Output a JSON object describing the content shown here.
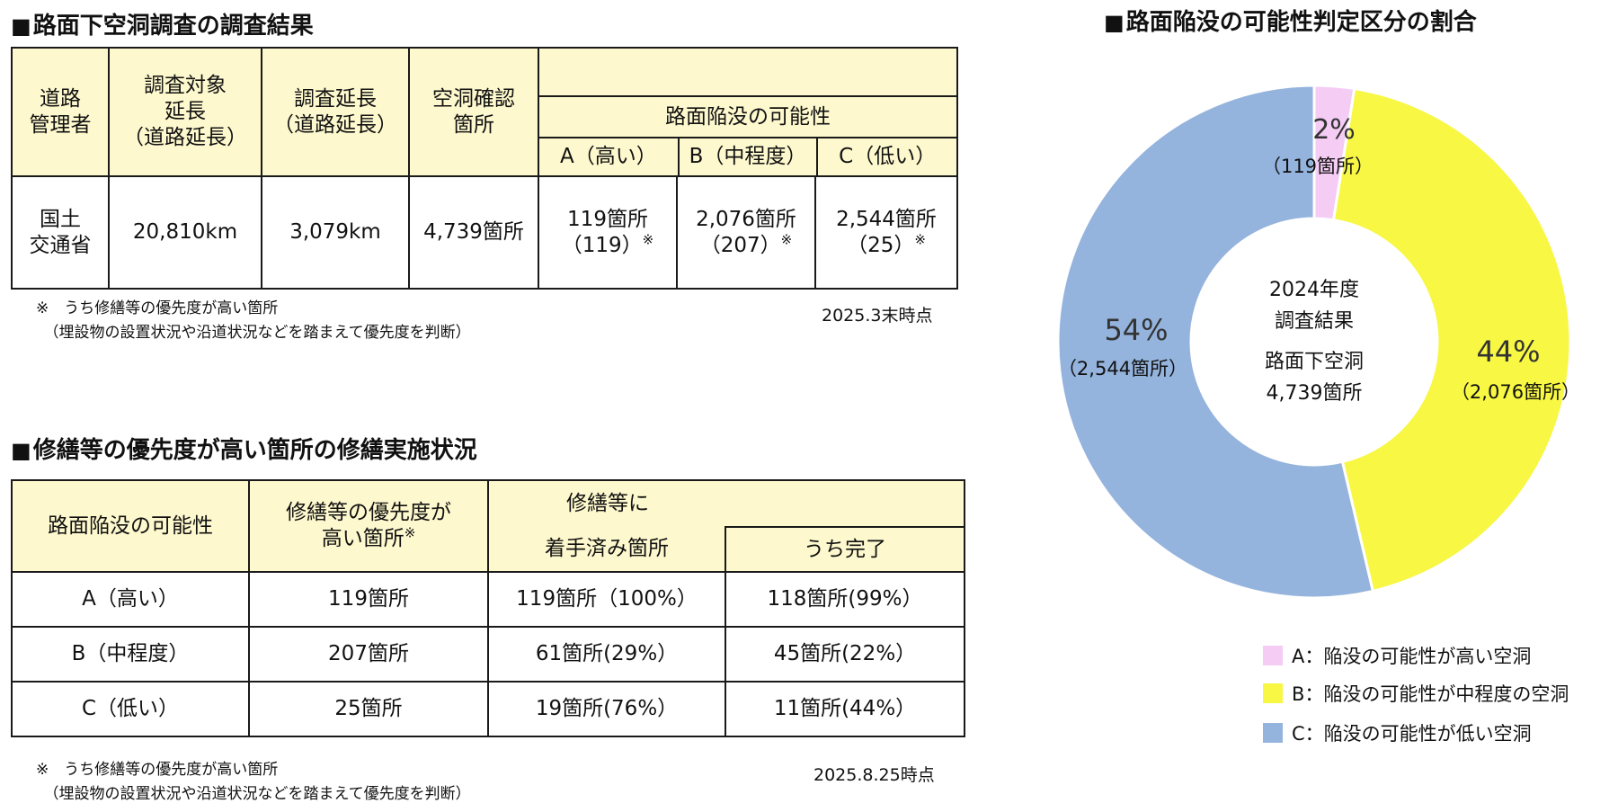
{
  "left": {
    "survey_heading": "路面下空洞調査の調査結果",
    "survey_table": {
      "headers": {
        "manager": [
          "道路",
          "管理者"
        ],
        "target_length": [
          "調査対象",
          "延長",
          "（道路延長）"
        ],
        "survey_length": [
          "調査延長",
          "（道路延長）"
        ],
        "confirmed": [
          "空洞確認",
          "箇所"
        ],
        "possibility": "路面陥没の可能性",
        "a": "A（高い）",
        "b": "B（中程度）",
        "c": "C（低い）"
      },
      "row": {
        "manager": [
          "国土",
          "交通省"
        ],
        "target_length": "20,810km",
        "survey_length": "3,079km",
        "confirmed": "4,739箇所",
        "a": "119箇所",
        "a_sub": "（119）",
        "b": "2,076箇所",
        "b_sub": "（207）",
        "c": "2,544箇所",
        "c_sub": "（25）",
        "mark": "※"
      }
    },
    "survey_note": [
      "※　うち修繕等の優先度が高い箇所",
      "　（埋設物の設置状況や沿道状況などを踏まえて優先度を判断）"
    ],
    "survey_asof": "2025.3末時点",
    "repair_heading": "修繕等の優先度が高い箇所の修繕実施状況",
    "repair_table": {
      "headers": {
        "possibility": "路面陥没の可能性",
        "priority": [
          "修繕等の優先度が",
          "高い箇所"
        ],
        "mark": "※",
        "started": [
          "修繕等に",
          "着手済み箇所"
        ],
        "completed": "うち完了"
      },
      "rows": [
        {
          "label": "A（高い）",
          "priority": "119箇所",
          "started": "119箇所（100%）",
          "completed": "118箇所(99%）"
        },
        {
          "label": "B（中程度）",
          "priority": "207箇所",
          "started": "61箇所(29%）",
          "completed": "45箇所(22%）"
        },
        {
          "label": "C（低い）",
          "priority": "25箇所",
          "started": "19箇所(76%）",
          "completed": "11箇所(44%）"
        }
      ]
    },
    "repair_note": [
      "※　うち修繕等の優先度が高い箇所",
      "　（埋設物の設置状況や沿道状況などを踏まえて優先度を判断）"
    ],
    "repair_asof": "2025.8.25時点"
  },
  "chart_data": {
    "type": "pie",
    "title": "路面陥没の可能性判定区分の割合",
    "center_text": [
      "2024年度",
      "調査結果",
      "路面下空洞",
      "4,739箇所"
    ],
    "slices": [
      {
        "label": "A：陥没の可能性が高い空洞",
        "percent": 2,
        "pct_label": "2%",
        "count_label": "（119箇所）",
        "value": 119,
        "color": "#f4ccf4"
      },
      {
        "label": "B：陥没の可能性が中程度の空洞",
        "percent": 44,
        "pct_label": "44%",
        "count_label": "（2,076箇所）",
        "value": 2076,
        "color": "#f7f744"
      },
      {
        "label": "C：陥没の可能性が低い空洞",
        "percent": 54,
        "pct_label": "54%",
        "count_label": "（2,544箇所）",
        "value": 2544,
        "color": "#94b3dd"
      }
    ]
  }
}
